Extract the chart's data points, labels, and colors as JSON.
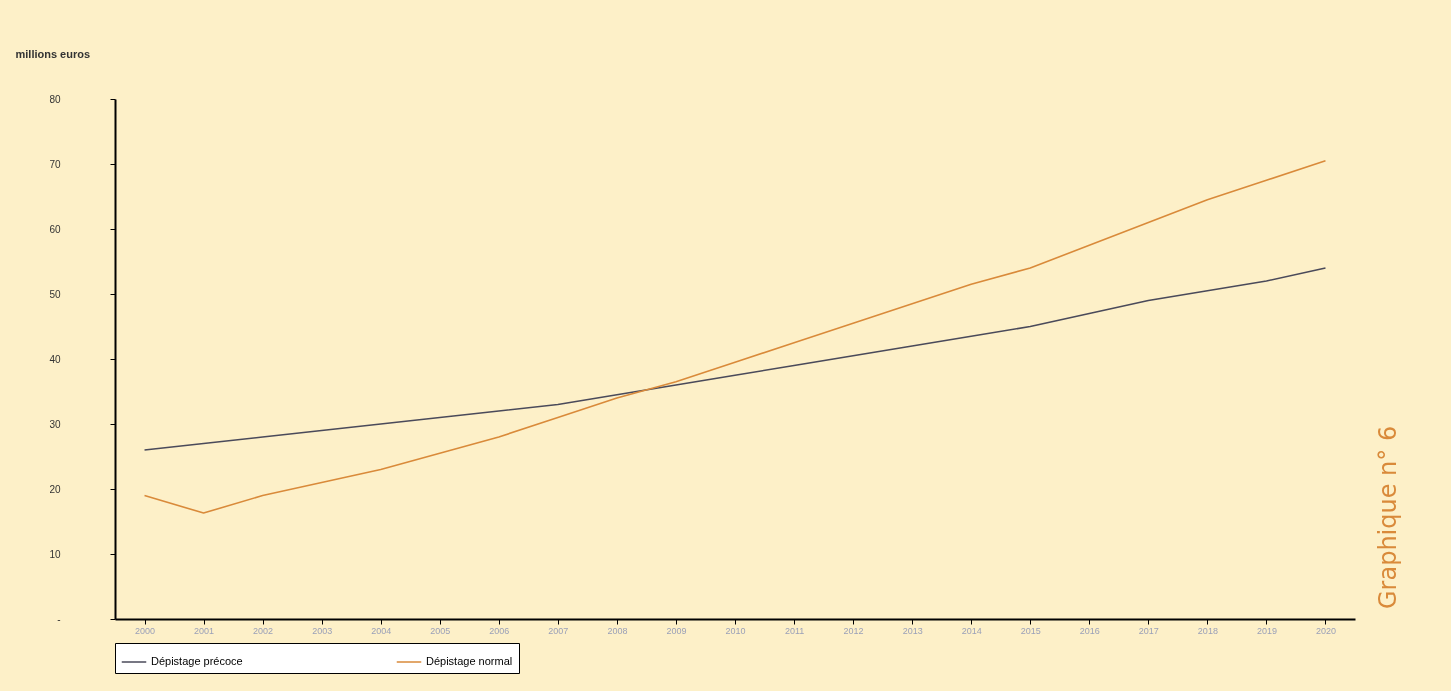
{
  "chart_data": {
    "type": "line",
    "ylabel": "millions euros",
    "categories": [
      "2000",
      "2001",
      "2002",
      "2003",
      "2004",
      "2005",
      "2006",
      "2007",
      "2008",
      "2009",
      "2010",
      "2011",
      "2012",
      "2013",
      "2014",
      "2015",
      "2016",
      "2017",
      "2018",
      "2019",
      "2020"
    ],
    "series": [
      {
        "name": "Dépistage précoce",
        "color": "#4a4a5a",
        "values": [
          26,
          27,
          28,
          29,
          30,
          31,
          32,
          33,
          34.5,
          36,
          37.5,
          39,
          40.5,
          42,
          43.5,
          45,
          47,
          49,
          50.5,
          52,
          54
        ]
      },
      {
        "name": "Dépistage normal",
        "color": "#d98a3a",
        "values": [
          19,
          16.3,
          19,
          21,
          23,
          25.5,
          28,
          31,
          34,
          36.5,
          39.5,
          42.5,
          45.5,
          48.5,
          51.5,
          54,
          57.5,
          61,
          64.5,
          67.5,
          70.5
        ]
      }
    ],
    "ylim": [
      0,
      80
    ],
    "yticks": [
      {
        "value": 0,
        "label": "-"
      },
      10,
      20,
      30,
      40,
      50,
      60,
      70,
      80
    ],
    "grid": false,
    "legend": "bottom",
    "marker": "none",
    "line_style": "solid",
    "annotations": [
      "Graphique n° 6"
    ]
  }
}
